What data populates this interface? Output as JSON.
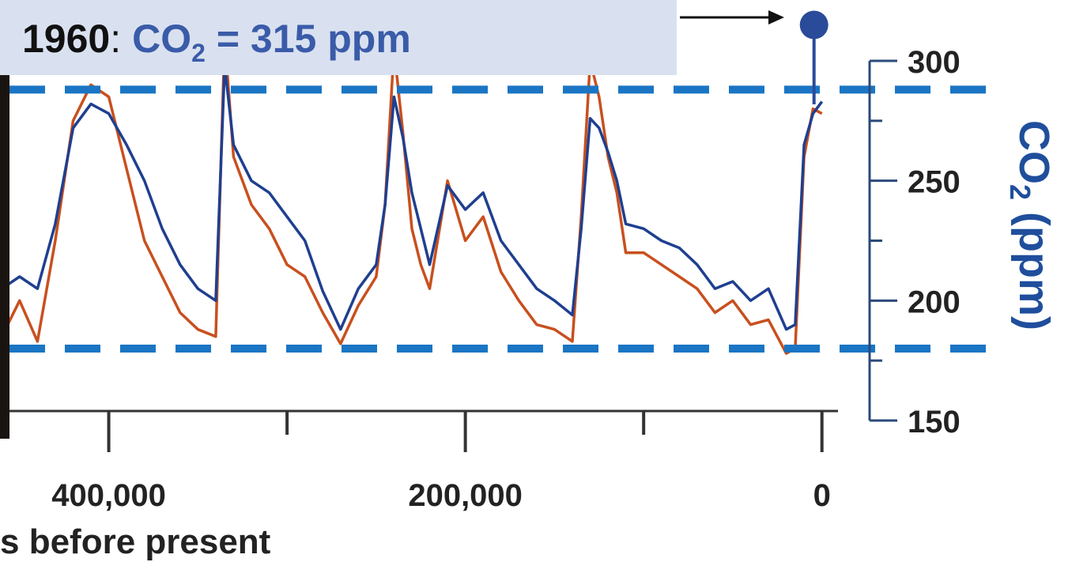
{
  "chart_data": {
    "type": "line",
    "annotation": {
      "year": "1960",
      "separator": ":",
      "prefix": "CO",
      "subscript": "2",
      "suffix": " = 315 ppm",
      "x": 0,
      "y": 315,
      "color": "#2a4a9a"
    },
    "y_label": {
      "prefix": "CO",
      "subscript": "2",
      "suffix": " (ppm)"
    },
    "x_label": "s before present",
    "x": [
      460000,
      450000,
      440000,
      430000,
      420000,
      410000,
      400000,
      390000,
      380000,
      370000,
      360000,
      350000,
      340000,
      335000,
      330000,
      320000,
      310000,
      300000,
      290000,
      280000,
      270000,
      260000,
      250000,
      245000,
      240000,
      235000,
      230000,
      225000,
      220000,
      210000,
      200000,
      190000,
      180000,
      170000,
      160000,
      150000,
      140000,
      135000,
      130000,
      125000,
      120000,
      115000,
      110000,
      100000,
      90000,
      80000,
      70000,
      60000,
      50000,
      40000,
      30000,
      20000,
      15000,
      10000,
      5000,
      0
    ],
    "series": [
      {
        "color": "#c8501e",
        "values": [
          185,
          200,
          183,
          225,
          275,
          290,
          285,
          255,
          225,
          210,
          195,
          188,
          185,
          310,
          260,
          240,
          230,
          215,
          210,
          195,
          182,
          198,
          210,
          240,
          305,
          270,
          230,
          215,
          205,
          250,
          225,
          235,
          212,
          200,
          190,
          188,
          183,
          235,
          300,
          285,
          260,
          245,
          220,
          220,
          215,
          210,
          205,
          195,
          200,
          190,
          192,
          178,
          180,
          260,
          280,
          278
        ]
      },
      {
        "color": "#1f3f8f",
        "values": [
          205,
          210,
          205,
          232,
          272,
          282,
          278,
          265,
          250,
          230,
          215,
          205,
          200,
          298,
          265,
          250,
          245,
          235,
          225,
          204,
          188,
          205,
          215,
          240,
          285,
          268,
          245,
          230,
          215,
          248,
          238,
          245,
          225,
          215,
          205,
          200,
          194,
          230,
          276,
          272,
          262,
          250,
          232,
          230,
          225,
          222,
          215,
          205,
          208,
          200,
          205,
          188,
          190,
          265,
          278,
          283
        ]
      }
    ],
    "xlim": [
      461000,
      -9000
    ],
    "ylim": [
      150,
      300
    ],
    "xticks": [
      {
        "value": 400000,
        "label": "400,000"
      },
      {
        "value": 200000,
        "label": "200,000"
      },
      0
    ],
    "x_minor_ticks": [
      300000,
      100000
    ],
    "yticks": [
      150,
      200,
      250,
      300
    ],
    "y_minor_ticks": [
      175,
      225,
      275
    ],
    "reference_lines": [
      288,
      180
    ],
    "reference_color": "#1a75c4"
  }
}
